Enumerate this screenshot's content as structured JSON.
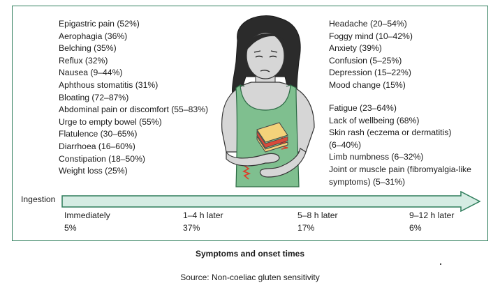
{
  "left_symptoms": [
    "Epigastric pain (52%)",
    "Aerophagia (36%)",
    "Belching (35%)",
    "Reflux (32%)",
    "Nausea (9–44%)",
    "Aphthous stomatitis (31%)",
    "Bloating (72–87%)",
    "Abdominal pain or discomfort (55–83%)",
    "Urge to empty bowel (55%)",
    "Flatulence (30–65%)",
    "Diarrhoea (16–60%)",
    "Constipation (18–50%)",
    "Weight loss (25%)"
  ],
  "right_symptoms_top": [
    "Headache (20–54%)",
    "Foggy mind (10–42%)",
    "Anxiety (39%)",
    "Confusion (5–25%)",
    "Depression (15–22%)",
    "Mood change (15%)"
  ],
  "right_symptoms_bottom": [
    "Fatigue (23–64%)",
    "Lack of wellbeing (68%)",
    "Skin rash (eczema or dermatitis)",
    "(6–40%)",
    "Limb numbness (6–32%)",
    "Joint or muscle pain (fibromyalgia-like",
    "symptoms) (5–31%)"
  ],
  "timeline": {
    "start_label": "Ingestion",
    "points": [
      {
        "time": "Immediately",
        "percent": "5%"
      },
      {
        "time": "1–4 h later",
        "percent": "37%"
      },
      {
        "time": "5–8 h later",
        "percent": "17%"
      },
      {
        "time": "9–12 h later",
        "percent": "6%"
      }
    ]
  },
  "caption": "Symptoms and onset times",
  "source": "Source: Non-coeliac gluten sensitivity",
  "colors": {
    "frame": "#2e7d5b",
    "arrow_fill": "#d5ece3",
    "shirt": "#7fbf8f",
    "skin": "#d6d6d6",
    "hair": "#2b2b2b",
    "pain_mark": "#e03a2a"
  }
}
